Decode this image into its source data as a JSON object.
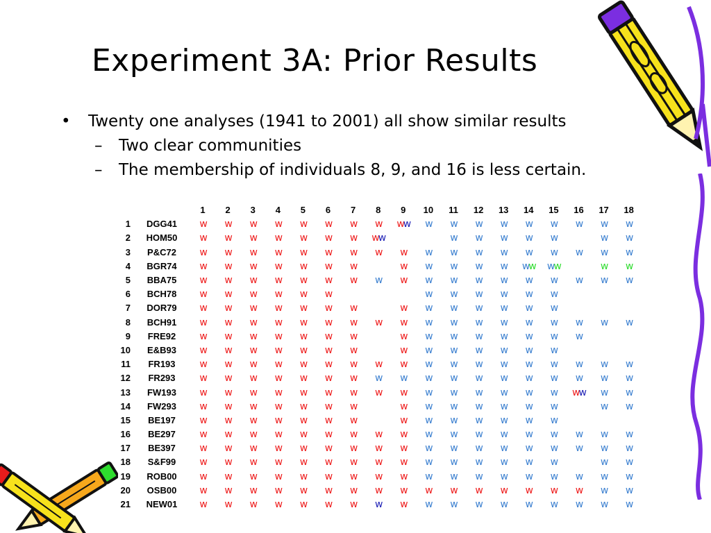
{
  "title": "Experiment 3A: Prior Results",
  "bullets": [
    {
      "mark": "•",
      "text": "Twenty one analyses (1941 to 2001) all show similar results"
    },
    {
      "mark": "–",
      "text": "Two clear communities"
    },
    {
      "mark": "–",
      "text": "The membership of individuals 8, 9, and 16 is less certain."
    }
  ],
  "palette": {
    "r": "#ee1c1c",
    "b": "#3c80d0",
    "n": "#1d1fb5",
    "g": "#2edc2e"
  },
  "table": {
    "columns": [
      "1",
      "2",
      "3",
      "4",
      "5",
      "6",
      "7",
      "8",
      "9",
      "10",
      "11",
      "12",
      "13",
      "14",
      "15",
      "16",
      "17",
      "18"
    ],
    "rows": [
      {
        "num": "1",
        "code": "DGG41",
        "cells": [
          "r",
          "r",
          "r",
          "r",
          "r",
          "r",
          "r",
          "r",
          "rn",
          "b",
          "b",
          "b",
          "b",
          "b",
          "b",
          "b",
          "b",
          "b"
        ]
      },
      {
        "num": "2",
        "code": "HOM50",
        "cells": [
          "r",
          "r",
          "r",
          "r",
          "r",
          "r",
          "r",
          "rn",
          "",
          "",
          "b",
          "b",
          "b",
          "b",
          "b",
          "",
          "b",
          "b"
        ]
      },
      {
        "num": "3",
        "code": "P&C72",
        "cells": [
          "r",
          "r",
          "r",
          "r",
          "r",
          "r",
          "r",
          "r",
          "r",
          "b",
          "b",
          "b",
          "b",
          "b",
          "b",
          "b",
          "b",
          "b"
        ]
      },
      {
        "num": "4",
        "code": "BGR74",
        "cells": [
          "r",
          "r",
          "r",
          "r",
          "r",
          "r",
          "r",
          "",
          "r",
          "b",
          "b",
          "b",
          "b",
          "bg",
          "bg",
          "",
          "g",
          "g"
        ]
      },
      {
        "num": "5",
        "code": "BBA75",
        "cells": [
          "r",
          "r",
          "r",
          "r",
          "r",
          "r",
          "r",
          "b",
          "r",
          "b",
          "b",
          "b",
          "b",
          "b",
          "b",
          "b",
          "b",
          "b"
        ]
      },
      {
        "num": "6",
        "code": "BCH78",
        "cells": [
          "r",
          "r",
          "r",
          "r",
          "r",
          "r",
          "",
          "",
          "",
          "b",
          "b",
          "b",
          "b",
          "b",
          "b",
          "",
          "",
          ""
        ]
      },
      {
        "num": "7",
        "code": "DOR79",
        "cells": [
          "r",
          "r",
          "r",
          "r",
          "r",
          "r",
          "r",
          "",
          "r",
          "b",
          "b",
          "b",
          "b",
          "b",
          "b",
          "",
          "",
          ""
        ]
      },
      {
        "num": "8",
        "code": "BCH91",
        "cells": [
          "r",
          "r",
          "r",
          "r",
          "r",
          "r",
          "r",
          "r",
          "r",
          "b",
          "b",
          "b",
          "b",
          "b",
          "b",
          "b",
          "b",
          "b"
        ]
      },
      {
        "num": "9",
        "code": "FRE92",
        "cells": [
          "r",
          "r",
          "r",
          "r",
          "r",
          "r",
          "r",
          "",
          "r",
          "b",
          "b",
          "b",
          "b",
          "b",
          "b",
          "b",
          "",
          ""
        ]
      },
      {
        "num": "10",
        "code": "E&B93",
        "cells": [
          "r",
          "r",
          "r",
          "r",
          "r",
          "r",
          "r",
          "",
          "r",
          "b",
          "b",
          "b",
          "b",
          "b",
          "b",
          "",
          "",
          ""
        ]
      },
      {
        "num": "11",
        "code": "FR193",
        "cells": [
          "r",
          "r",
          "r",
          "r",
          "r",
          "r",
          "r",
          "r",
          "r",
          "b",
          "b",
          "b",
          "b",
          "b",
          "b",
          "b",
          "b",
          "b"
        ]
      },
      {
        "num": "12",
        "code": "FR293",
        "cells": [
          "r",
          "r",
          "r",
          "r",
          "r",
          "r",
          "r",
          "b",
          "b",
          "b",
          "b",
          "b",
          "b",
          "b",
          "b",
          "b",
          "b",
          "b"
        ]
      },
      {
        "num": "13",
        "code": "FW193",
        "cells": [
          "r",
          "r",
          "r",
          "r",
          "r",
          "r",
          "r",
          "r",
          "r",
          "b",
          "b",
          "b",
          "b",
          "b",
          "b",
          "rn",
          "b",
          "b"
        ]
      },
      {
        "num": "14",
        "code": "FW293",
        "cells": [
          "r",
          "r",
          "r",
          "r",
          "r",
          "r",
          "r",
          "",
          "r",
          "b",
          "b",
          "b",
          "b",
          "b",
          "b",
          "",
          "b",
          "b"
        ]
      },
      {
        "num": "15",
        "code": "BE197",
        "cells": [
          "r",
          "r",
          "r",
          "r",
          "r",
          "r",
          "r",
          "",
          "r",
          "b",
          "b",
          "b",
          "b",
          "b",
          "b",
          "",
          "",
          ""
        ]
      },
      {
        "num": "16",
        "code": "BE297",
        "cells": [
          "r",
          "r",
          "r",
          "r",
          "r",
          "r",
          "r",
          "r",
          "r",
          "b",
          "b",
          "b",
          "b",
          "b",
          "b",
          "b",
          "b",
          "b"
        ]
      },
      {
        "num": "17",
        "code": "BE397",
        "cells": [
          "r",
          "r",
          "r",
          "r",
          "r",
          "r",
          "r",
          "r",
          "r",
          "b",
          "b",
          "b",
          "b",
          "b",
          "b",
          "b",
          "b",
          "b"
        ]
      },
      {
        "num": "18",
        "code": "S&F99",
        "cells": [
          "r",
          "r",
          "r",
          "r",
          "r",
          "r",
          "r",
          "r",
          "r",
          "b",
          "b",
          "b",
          "b",
          "b",
          "b",
          "",
          "b",
          "b"
        ]
      },
      {
        "num": "19",
        "code": "ROB00",
        "cells": [
          "r",
          "r",
          "r",
          "r",
          "r",
          "r",
          "r",
          "r",
          "r",
          "b",
          "b",
          "b",
          "b",
          "b",
          "b",
          "b",
          "b",
          "b"
        ]
      },
      {
        "num": "20",
        "code": "OSB00",
        "cells": [
          "r",
          "r",
          "r",
          "r",
          "r",
          "r",
          "r",
          "r",
          "r",
          "r",
          "r",
          "r",
          "r",
          "r",
          "r",
          "r",
          "b",
          "b"
        ]
      },
      {
        "num": "21",
        "code": "NEW01",
        "cells": [
          "r",
          "r",
          "r",
          "r",
          "r",
          "r",
          "r",
          "n",
          "r",
          "b",
          "b",
          "b",
          "b",
          "b",
          "b",
          "b",
          "b",
          "b"
        ]
      }
    ]
  }
}
